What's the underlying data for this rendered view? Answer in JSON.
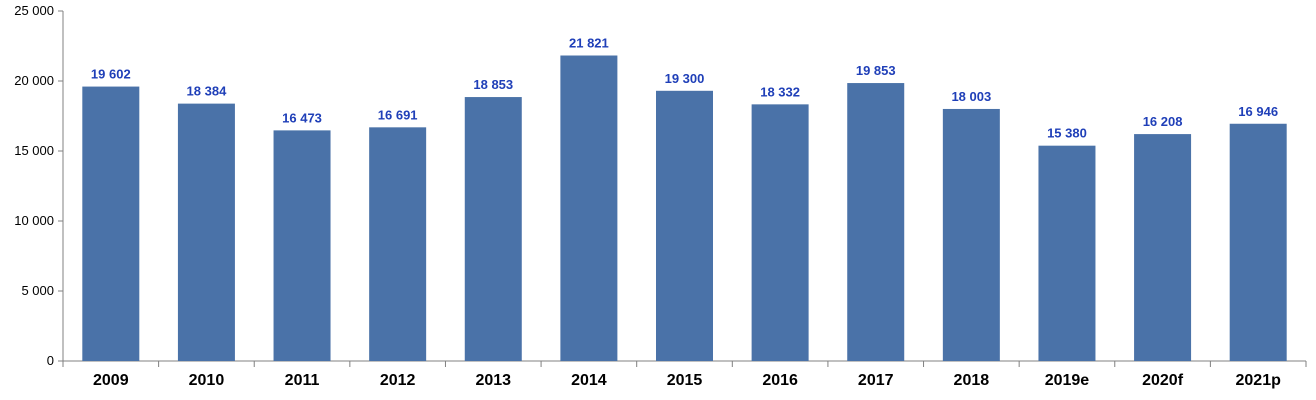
{
  "chart_data": {
    "type": "bar",
    "title": "",
    "xlabel": "",
    "ylabel": "",
    "categories": [
      "2009",
      "2010",
      "2011",
      "2012",
      "2013",
      "2014",
      "2015",
      "2016",
      "2017",
      "2018",
      "2019e",
      "2020f",
      "2021p"
    ],
    "values": [
      19602,
      18384,
      16473,
      16691,
      18853,
      21821,
      19300,
      18332,
      19853,
      18003,
      15380,
      16208,
      16946
    ],
    "value_labels": [
      "19 602",
      "18 384",
      "16 473",
      "16 691",
      "18 853",
      "21 821",
      "19 300",
      "18 332",
      "19 853",
      "18 003",
      "15 380",
      "16 208",
      "16 946"
    ],
    "ylim": [
      0,
      25000
    ],
    "yticks": [
      0,
      5000,
      10000,
      15000,
      20000,
      25000
    ],
    "ytick_labels": [
      "0",
      "5 000",
      "10 000",
      "15 000",
      "20 000",
      "25 000"
    ],
    "grid": false,
    "legend": "none",
    "colors": {
      "bar": "#4a72a8",
      "data_label": "#1f3fb8",
      "axis": "#808080"
    }
  }
}
